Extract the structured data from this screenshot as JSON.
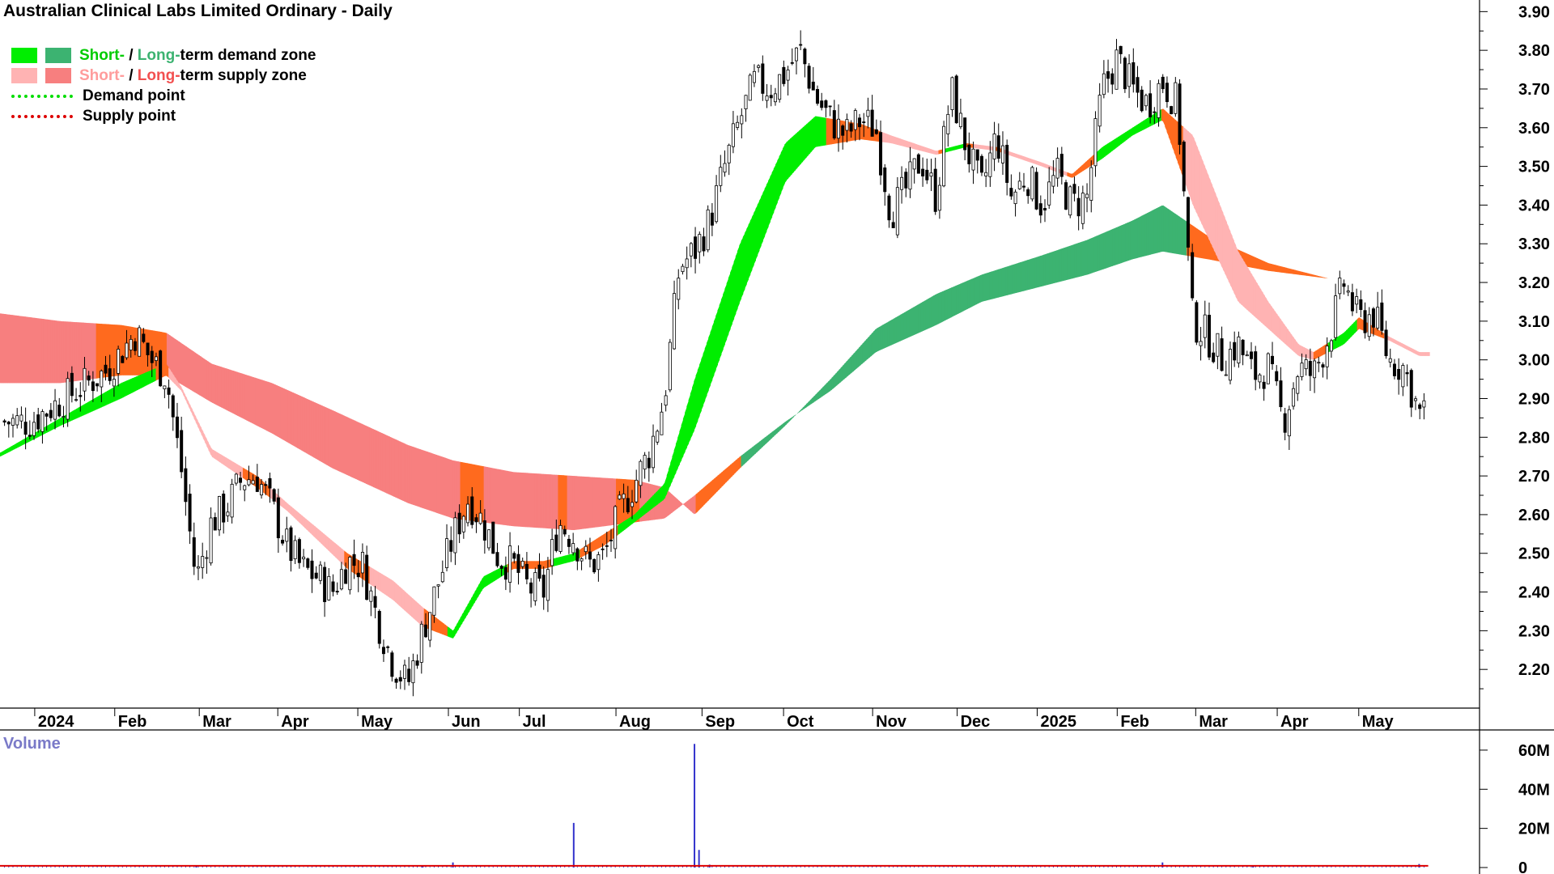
{
  "title": "Australian Clinical Labs Limited Ordinary - Daily",
  "legend": {
    "row1_short": "Short-",
    "row1_sep": " / ",
    "row1_long": "Long-",
    "row1_rest": "term demand zone",
    "row2_short": "Short-",
    "row2_sep": " / ",
    "row2_long": "Long-",
    "row2_rest": "term supply zone",
    "row3": "Demand point",
    "row4": "Supply point"
  },
  "volume_label": "Volume",
  "colors": {
    "short_demand": "#00ee00",
    "long_demand": "#3cb371",
    "short_supply": "#ffb3b3",
    "long_supply": "#f77f7f",
    "transition": "#ff6a1e",
    "short_demand_text": "#00cc00",
    "long_demand_text": "#3cb371",
    "short_supply_text": "#ff9c9c",
    "long_supply_text": "#f25050",
    "demand_point": "#00dd00",
    "supply_point": "#dd0000",
    "volume_bar": "#3333cc",
    "volume_ma": "#dd0000"
  },
  "chart_data": {
    "type": "candlestick",
    "title": "Australian Clinical Labs Limited Ordinary - Daily",
    "y_axis": {
      "ylim": [
        2.1,
        3.93
      ],
      "ticks": [
        "2.20",
        "2.30",
        "2.40",
        "2.50",
        "2.60",
        "2.70",
        "2.80",
        "2.90",
        "3.00",
        "3.10",
        "3.20",
        "3.30",
        "3.40",
        "3.50",
        "3.60",
        "3.70",
        "3.80",
        "3.90"
      ],
      "position": "right"
    },
    "x_axis": {
      "labels": [
        "2024",
        "Feb",
        "Mar",
        "Apr",
        "May",
        "Jun",
        "Jul",
        "Aug",
        "Sep",
        "Oct",
        "Nov",
        "Dec",
        "2025",
        "Feb",
        "Mar",
        "Apr",
        "May"
      ],
      "label_positions": [
        0.3,
        5.6,
        11.2,
        16.4,
        21.7,
        27.7,
        32.4,
        38.8,
        44.5,
        49.9,
        55.8,
        61.4,
        66.7,
        72.0,
        77.2,
        82.6,
        88.0
      ],
      "range": [
        -2,
        96
      ]
    },
    "close_series": [
      [
        0,
        2.84
      ],
      [
        3,
        2.92
      ],
      [
        5,
        2.97
      ],
      [
        7,
        3.07
      ],
      [
        8,
        3.0
      ],
      [
        9,
        2.96
      ],
      [
        10,
        2.72
      ],
      [
        11,
        2.43
      ],
      [
        12,
        2.58
      ],
      [
        13,
        2.62
      ],
      [
        14,
        2.69
      ],
      [
        15,
        2.7
      ],
      [
        16,
        2.62
      ],
      [
        17,
        2.52
      ],
      [
        18,
        2.46
      ],
      [
        19,
        2.44
      ],
      [
        20,
        2.4
      ],
      [
        21,
        2.48
      ],
      [
        22,
        2.47
      ],
      [
        23,
        2.33
      ],
      [
        24,
        2.22
      ],
      [
        25,
        2.16
      ],
      [
        26,
        2.3
      ],
      [
        27,
        2.42
      ],
      [
        28,
        2.54
      ],
      [
        29,
        2.64
      ],
      [
        30,
        2.58
      ],
      [
        31,
        2.49
      ],
      [
        32,
        2.47
      ],
      [
        33,
        2.41
      ],
      [
        34,
        2.4
      ],
      [
        35,
        2.58
      ],
      [
        36,
        2.54
      ],
      [
        37,
        2.47
      ],
      [
        38,
        2.49
      ],
      [
        39,
        2.6
      ],
      [
        40,
        2.68
      ],
      [
        41,
        2.76
      ],
      [
        42,
        2.9
      ],
      [
        43,
        3.24
      ],
      [
        44,
        3.28
      ],
      [
        45,
        3.36
      ],
      [
        46,
        3.5
      ],
      [
        47,
        3.62
      ],
      [
        48,
        3.72
      ],
      [
        49,
        3.7
      ],
      [
        50,
        3.74
      ],
      [
        51,
        3.8
      ],
      [
        52,
        3.68
      ],
      [
        53,
        3.62
      ],
      [
        54,
        3.58
      ],
      [
        55,
        3.62
      ],
      [
        56,
        3.6
      ],
      [
        57,
        3.38
      ],
      [
        58,
        3.44
      ],
      [
        59,
        3.52
      ],
      [
        60,
        3.42
      ],
      [
        61,
        3.7
      ],
      [
        62,
        3.55
      ],
      [
        63,
        3.44
      ],
      [
        64,
        3.58
      ],
      [
        65,
        3.42
      ],
      [
        66,
        3.48
      ],
      [
        67,
        3.4
      ],
      [
        68,
        3.48
      ],
      [
        69,
        3.4
      ],
      [
        70,
        3.42
      ],
      [
        71,
        3.7
      ],
      [
        72,
        3.78
      ],
      [
        73,
        3.7
      ],
      [
        74,
        3.66
      ],
      [
        75,
        3.72
      ],
      [
        76,
        3.66
      ],
      [
        77,
        3.1
      ],
      [
        78,
        3.06
      ],
      [
        79,
        3.0
      ],
      [
        80,
        3.04
      ],
      [
        81,
        2.96
      ],
      [
        82,
        2.98
      ],
      [
        83,
        2.84
      ],
      [
        84,
        2.98
      ],
      [
        85,
        2.96
      ],
      [
        86,
        3.06
      ],
      [
        87,
        3.2
      ],
      [
        88,
        3.1
      ],
      [
        89,
        3.12
      ],
      [
        90,
        3.0
      ],
      [
        91,
        2.98
      ],
      [
        92,
        2.86
      ]
    ],
    "long_zone_upper": [
      [
        -2,
        3.12
      ],
      [
        2,
        3.1
      ],
      [
        6,
        3.09
      ],
      [
        9,
        3.07
      ],
      [
        12,
        2.99
      ],
      [
        16,
        2.94
      ],
      [
        20,
        2.87
      ],
      [
        25,
        2.78
      ],
      [
        28,
        2.74
      ],
      [
        32,
        2.71
      ],
      [
        36,
        2.7
      ],
      [
        40,
        2.69
      ],
      [
        42,
        2.67
      ],
      [
        44,
        2.6
      ],
      [
        47,
        2.72
      ],
      [
        50,
        2.83
      ],
      [
        53,
        2.95
      ],
      [
        56,
        3.08
      ],
      [
        60,
        3.17
      ],
      [
        63,
        3.22
      ],
      [
        67,
        3.27
      ],
      [
        70,
        3.31
      ],
      [
        73,
        3.36
      ],
      [
        75,
        3.4
      ],
      [
        78,
        3.32
      ],
      [
        82,
        3.25
      ],
      [
        86,
        3.21
      ],
      [
        90,
        3.19
      ],
      [
        93,
        3.16
      ]
    ],
    "long_zone_lower": [
      [
        -2,
        2.94
      ],
      [
        2,
        2.94
      ],
      [
        6,
        2.96
      ],
      [
        9,
        2.96
      ],
      [
        12,
        2.89
      ],
      [
        16,
        2.81
      ],
      [
        20,
        2.72
      ],
      [
        25,
        2.63
      ],
      [
        28,
        2.59
      ],
      [
        32,
        2.57
      ],
      [
        36,
        2.56
      ],
      [
        40,
        2.58
      ],
      [
        42,
        2.59
      ],
      [
        44,
        2.65
      ],
      [
        47,
        2.75
      ],
      [
        50,
        2.84
      ],
      [
        53,
        2.92
      ],
      [
        56,
        3.02
      ],
      [
        60,
        3.09
      ],
      [
        63,
        3.15
      ],
      [
        67,
        3.19
      ],
      [
        70,
        3.22
      ],
      [
        73,
        3.26
      ],
      [
        75,
        3.28
      ],
      [
        78,
        3.26
      ],
      [
        82,
        3.23
      ],
      [
        86,
        3.21
      ],
      [
        90,
        3.19
      ],
      [
        93,
        3.16
      ]
    ],
    "short_zone_upper": [
      [
        -2,
        2.76
      ],
      [
        2,
        2.85
      ],
      [
        6,
        2.94
      ],
      [
        9,
        2.99
      ],
      [
        10,
        2.93
      ],
      [
        12,
        2.77
      ],
      [
        15,
        2.7
      ],
      [
        17,
        2.63
      ],
      [
        21,
        2.5
      ],
      [
        24,
        2.43
      ],
      [
        26,
        2.36
      ],
      [
        28,
        2.3
      ],
      [
        30,
        2.44
      ],
      [
        32,
        2.48
      ],
      [
        34,
        2.48
      ],
      [
        36,
        2.5
      ],
      [
        38,
        2.55
      ],
      [
        40,
        2.6
      ],
      [
        42,
        2.68
      ],
      [
        44,
        2.95
      ],
      [
        47,
        3.3
      ],
      [
        50,
        3.56
      ],
      [
        52,
        3.63
      ],
      [
        55,
        3.61
      ],
      [
        57,
        3.58
      ],
      [
        60,
        3.54
      ],
      [
        62,
        3.56
      ],
      [
        64,
        3.55
      ],
      [
        67,
        3.51
      ],
      [
        69,
        3.48
      ],
      [
        71,
        3.55
      ],
      [
        73,
        3.6
      ],
      [
        75,
        3.65
      ],
      [
        77,
        3.58
      ],
      [
        80,
        3.28
      ],
      [
        82,
        3.15
      ],
      [
        84,
        3.04
      ],
      [
        85,
        3.02
      ],
      [
        87,
        3.07
      ],
      [
        88,
        3.11
      ],
      [
        90,
        3.06
      ],
      [
        92,
        3.02
      ]
    ],
    "short_zone_lower": [
      [
        -2,
        2.75
      ],
      [
        2,
        2.83
      ],
      [
        6,
        2.9
      ],
      [
        9,
        2.96
      ],
      [
        10,
        2.92
      ],
      [
        12,
        2.75
      ],
      [
        15,
        2.67
      ],
      [
        17,
        2.61
      ],
      [
        21,
        2.46
      ],
      [
        24,
        2.38
      ],
      [
        26,
        2.31
      ],
      [
        28,
        2.28
      ],
      [
        30,
        2.41
      ],
      [
        32,
        2.46
      ],
      [
        34,
        2.46
      ],
      [
        36,
        2.48
      ],
      [
        38,
        2.52
      ],
      [
        40,
        2.58
      ],
      [
        42,
        2.64
      ],
      [
        44,
        2.82
      ],
      [
        47,
        3.15
      ],
      [
        50,
        3.46
      ],
      [
        52,
        3.55
      ],
      [
        55,
        3.57
      ],
      [
        57,
        3.56
      ],
      [
        60,
        3.53
      ],
      [
        62,
        3.55
      ],
      [
        64,
        3.54
      ],
      [
        67,
        3.5
      ],
      [
        69,
        3.47
      ],
      [
        71,
        3.52
      ],
      [
        73,
        3.58
      ],
      [
        75,
        3.62
      ],
      [
        77,
        3.4
      ],
      [
        80,
        3.15
      ],
      [
        82,
        3.08
      ],
      [
        84,
        3.01
      ],
      [
        85,
        3.0
      ],
      [
        87,
        3.04
      ],
      [
        88,
        3.08
      ],
      [
        90,
        3.05
      ],
      [
        92,
        3.01
      ]
    ],
    "volume": {
      "ylim": [
        0,
        67
      ],
      "ticks": [
        "0",
        "20M",
        "40M",
        "60M"
      ],
      "spikes": [
        [
          11,
          0.8
        ],
        [
          26,
          0.6
        ],
        [
          28,
          2.6
        ],
        [
          36,
          22.8
        ],
        [
          44,
          63.2
        ],
        [
          44.3,
          9.0
        ],
        [
          45,
          1.5
        ],
        [
          75,
          2.6
        ],
        [
          81,
          1.0
        ],
        [
          92,
          1.8
        ]
      ],
      "baseline": 0.3,
      "ma": 0.9
    }
  }
}
